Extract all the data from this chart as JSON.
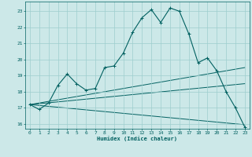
{
  "xlabel": "Humidex (Indice chaleur)",
  "bg_color": "#cce8e8",
  "grid_color": "#9ecece",
  "line_color": "#006060",
  "xlim": [
    -0.5,
    23.5
  ],
  "ylim": [
    15.7,
    23.6
  ],
  "yticks": [
    16,
    17,
    18,
    19,
    20,
    21,
    22,
    23
  ],
  "xticks": [
    0,
    1,
    2,
    3,
    4,
    5,
    6,
    7,
    8,
    9,
    10,
    11,
    12,
    13,
    14,
    15,
    16,
    17,
    18,
    19,
    20,
    21,
    22,
    23
  ],
  "main_line_x": [
    0,
    1,
    2,
    3,
    4,
    5,
    6,
    7,
    8,
    9,
    10,
    11,
    12,
    13,
    14,
    15,
    16,
    17,
    18,
    19,
    20,
    21,
    22,
    23
  ],
  "main_line_y": [
    17.2,
    16.9,
    17.3,
    18.4,
    19.1,
    18.5,
    18.1,
    18.2,
    19.5,
    19.6,
    20.4,
    21.7,
    22.6,
    23.1,
    22.3,
    23.2,
    23.0,
    21.6,
    19.8,
    20.1,
    19.3,
    18.0,
    17.0,
    15.8
  ],
  "trend_lines": [
    [
      0,
      17.2,
      23,
      19.5
    ],
    [
      0,
      17.2,
      23,
      18.5
    ],
    [
      0,
      17.2,
      23,
      15.95
    ]
  ]
}
